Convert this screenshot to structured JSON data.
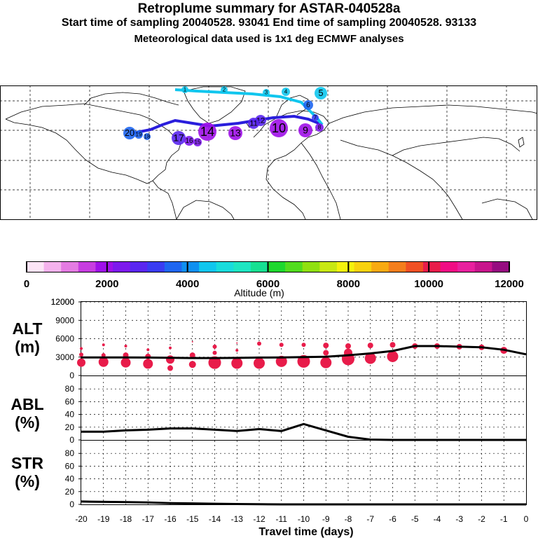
{
  "header": {
    "title": "Retroplume summary for ASTAR-040528a",
    "sampling": "Start time of sampling 20040528. 93041      End time of sampling 20040528. 93133",
    "met": "Meteorological data used is 1x1 deg ECMWF analyses"
  },
  "colorbar": {
    "label": "Altitude (m)",
    "ticks": [
      "0",
      "2000",
      "4000",
      "6000",
      "8000",
      "10000",
      "12000"
    ],
    "colors": [
      "#fce4f6",
      "#f4b2ec",
      "#e47be2",
      "#c73de0",
      "#9f10e8",
      "#7d19ec",
      "#5a26f0",
      "#3a3cf2",
      "#1f66f0",
      "#0f90f0",
      "#10c6ee",
      "#18dcdc",
      "#1ee6c2",
      "#16e092",
      "#1ed82e",
      "#52dc1e",
      "#90e010",
      "#c8e812",
      "#f4f20c",
      "#f8d20e",
      "#f8aa12",
      "#f47e1c",
      "#f05024",
      "#e81c4a",
      "#f00c84",
      "#e8209e",
      "#c8148c",
      "#960c80"
    ]
  },
  "chart_data": [
    {
      "type": "scatter",
      "panel": "ALT",
      "ylabel": "ALT\n(m)",
      "ylim": [
        0,
        12000
      ],
      "yticks": [
        0,
        3000,
        6000,
        9000,
        12000
      ],
      "xlim": [
        -20,
        0
      ],
      "xticks": [
        -20,
        -19,
        -18,
        -17,
        -16,
        -15,
        -14,
        -13,
        -12,
        -11,
        -10,
        -9,
        -8,
        -7,
        -6,
        -5,
        -4,
        -3,
        -2,
        -1,
        0
      ],
      "line": {
        "x": [
          -20,
          -19,
          -18,
          -17,
          -16,
          -15,
          -14,
          -13,
          -12,
          -11,
          -10,
          -9,
          -8,
          -7,
          -6,
          -5,
          -4,
          -3,
          -2,
          -1,
          0
        ],
        "y": [
          2950,
          2950,
          2950,
          2920,
          2880,
          2850,
          2850,
          2870,
          2920,
          2950,
          3000,
          3050,
          3300,
          3600,
          4000,
          4800,
          4800,
          4700,
          4600,
          4200,
          3450
        ]
      },
      "clusters": [
        {
          "x": -20,
          "y": 4400,
          "s": 2
        },
        {
          "x": -20,
          "y": 3400,
          "s": 3
        },
        {
          "x": -20,
          "y": 2100,
          "s": 6
        },
        {
          "x": -19,
          "y": 5000,
          "s": 2
        },
        {
          "x": -19,
          "y": 3300,
          "s": 3
        },
        {
          "x": -19,
          "y": 2200,
          "s": 7
        },
        {
          "x": -18,
          "y": 4800,
          "s": 2
        },
        {
          "x": -18,
          "y": 3300,
          "s": 4
        },
        {
          "x": -18,
          "y": 2100,
          "s": 7
        },
        {
          "x": -17,
          "y": 4200,
          "s": 2
        },
        {
          "x": -17,
          "y": 3100,
          "s": 4
        },
        {
          "x": -17,
          "y": 1900,
          "s": 7
        },
        {
          "x": -16,
          "y": 4500,
          "s": 2
        },
        {
          "x": -16,
          "y": 2600,
          "s": 6
        },
        {
          "x": -16,
          "y": 1200,
          "s": 4
        },
        {
          "x": -15,
          "y": 5500,
          "s": 1
        },
        {
          "x": -15,
          "y": 3300,
          "s": 4
        },
        {
          "x": -15,
          "y": 1800,
          "s": 5
        },
        {
          "x": -14,
          "y": 4700,
          "s": 3
        },
        {
          "x": -14,
          "y": 3700,
          "s": 3
        },
        {
          "x": -14,
          "y": 2100,
          "s": 9
        },
        {
          "x": -13,
          "y": 5300,
          "s": 1
        },
        {
          "x": -13,
          "y": 4100,
          "s": 2
        },
        {
          "x": -13,
          "y": 2000,
          "s": 8
        },
        {
          "x": -12,
          "y": 5200,
          "s": 3
        },
        {
          "x": -12,
          "y": 2000,
          "s": 8
        },
        {
          "x": -11,
          "y": 5000,
          "s": 3
        },
        {
          "x": -11,
          "y": 2300,
          "s": 8
        },
        {
          "x": -10,
          "y": 5000,
          "s": 3
        },
        {
          "x": -10,
          "y": 2300,
          "s": 9
        },
        {
          "x": -9,
          "y": 4900,
          "s": 4
        },
        {
          "x": -9,
          "y": 3700,
          "s": 4
        },
        {
          "x": -9,
          "y": 2100,
          "s": 8
        },
        {
          "x": -8,
          "y": 4800,
          "s": 4
        },
        {
          "x": -8,
          "y": 3700,
          "s": 6
        },
        {
          "x": -8,
          "y": 2700,
          "s": 9
        },
        {
          "x": -7,
          "y": 4900,
          "s": 4
        },
        {
          "x": -7,
          "y": 2800,
          "s": 8
        },
        {
          "x": -6,
          "y": 5000,
          "s": 4
        },
        {
          "x": -6,
          "y": 3100,
          "s": 8
        },
        {
          "x": -5,
          "y": 4800,
          "s": 4
        },
        {
          "x": -4,
          "y": 4800,
          "s": 4
        },
        {
          "x": -3,
          "y": 4700,
          "s": 4
        },
        {
          "x": -2,
          "y": 4600,
          "s": 4
        },
        {
          "x": -1,
          "y": 4100,
          "s": 5
        }
      ]
    },
    {
      "type": "line",
      "panel": "ABL",
      "ylabel": "ABL\n(%)",
      "ylim": [
        0,
        100
      ],
      "yticks": [
        0,
        20,
        40,
        60,
        80
      ],
      "xlim": [
        -20,
        0
      ],
      "x": [
        -20,
        -19,
        -18,
        -17,
        -16,
        -15,
        -14,
        -13,
        -12,
        -11,
        -10,
        -9,
        -8,
        -7,
        -6,
        -5,
        -4,
        -3,
        -2,
        -1,
        0
      ],
      "y": [
        13,
        13,
        15,
        16,
        18,
        18,
        16,
        14,
        17,
        14,
        25,
        15,
        5,
        0.5,
        0,
        0,
        0,
        0,
        0,
        0,
        0
      ]
    },
    {
      "type": "line",
      "panel": "STR",
      "ylabel": "STR\n(%)",
      "ylim": [
        0,
        100
      ],
      "yticks": [
        0,
        20,
        40,
        60,
        80
      ],
      "xlim": [
        -20,
        0
      ],
      "xlabel": "Travel time (days)",
      "x": [
        -20,
        -19,
        -18,
        -17,
        -16,
        -15,
        -14,
        -13,
        -12,
        -11,
        -10,
        -9,
        -8,
        -7,
        -6,
        -5,
        -4,
        -3,
        -2,
        -1,
        0
      ],
      "y": [
        4.5,
        4,
        3.5,
        3,
        2,
        1.5,
        1,
        0.5,
        0.2,
        0,
        0,
        0,
        0,
        0,
        0,
        0,
        0,
        0,
        0,
        0,
        0
      ]
    }
  ],
  "map": {
    "trajectory_labels": [
      {
        "t": "20",
        "c": "#1f66f0"
      },
      {
        "t": "19",
        "c": "#1f66f0"
      },
      {
        "t": "18",
        "c": "#1f66f0"
      },
      {
        "t": "17",
        "c": "#5a26f0"
      },
      {
        "t": "16",
        "c": "#7d19ec"
      },
      {
        "t": "15",
        "c": "#7d19ec"
      },
      {
        "t": "14",
        "c": "#9f10e8"
      },
      {
        "t": "13",
        "c": "#9f10e8"
      },
      {
        "t": "12",
        "c": "#5a26f0"
      },
      {
        "t": "11",
        "c": "#5a26f0"
      },
      {
        "t": "10",
        "c": "#9f10e8"
      },
      {
        "t": "9",
        "c": "#9f10e8"
      },
      {
        "t": "8",
        "c": "#7d19ec"
      },
      {
        "t": "7",
        "c": "#3a3cf2"
      },
      {
        "t": "6",
        "c": "#1f66f0"
      },
      {
        "t": "5",
        "c": "#10c6ee"
      },
      {
        "t": "4",
        "c": "#10c6ee"
      },
      {
        "t": "3",
        "c": "#10c6ee"
      },
      {
        "t": "2",
        "c": "#10c6ee"
      },
      {
        "t": "1",
        "c": "#10c6ee"
      }
    ]
  }
}
